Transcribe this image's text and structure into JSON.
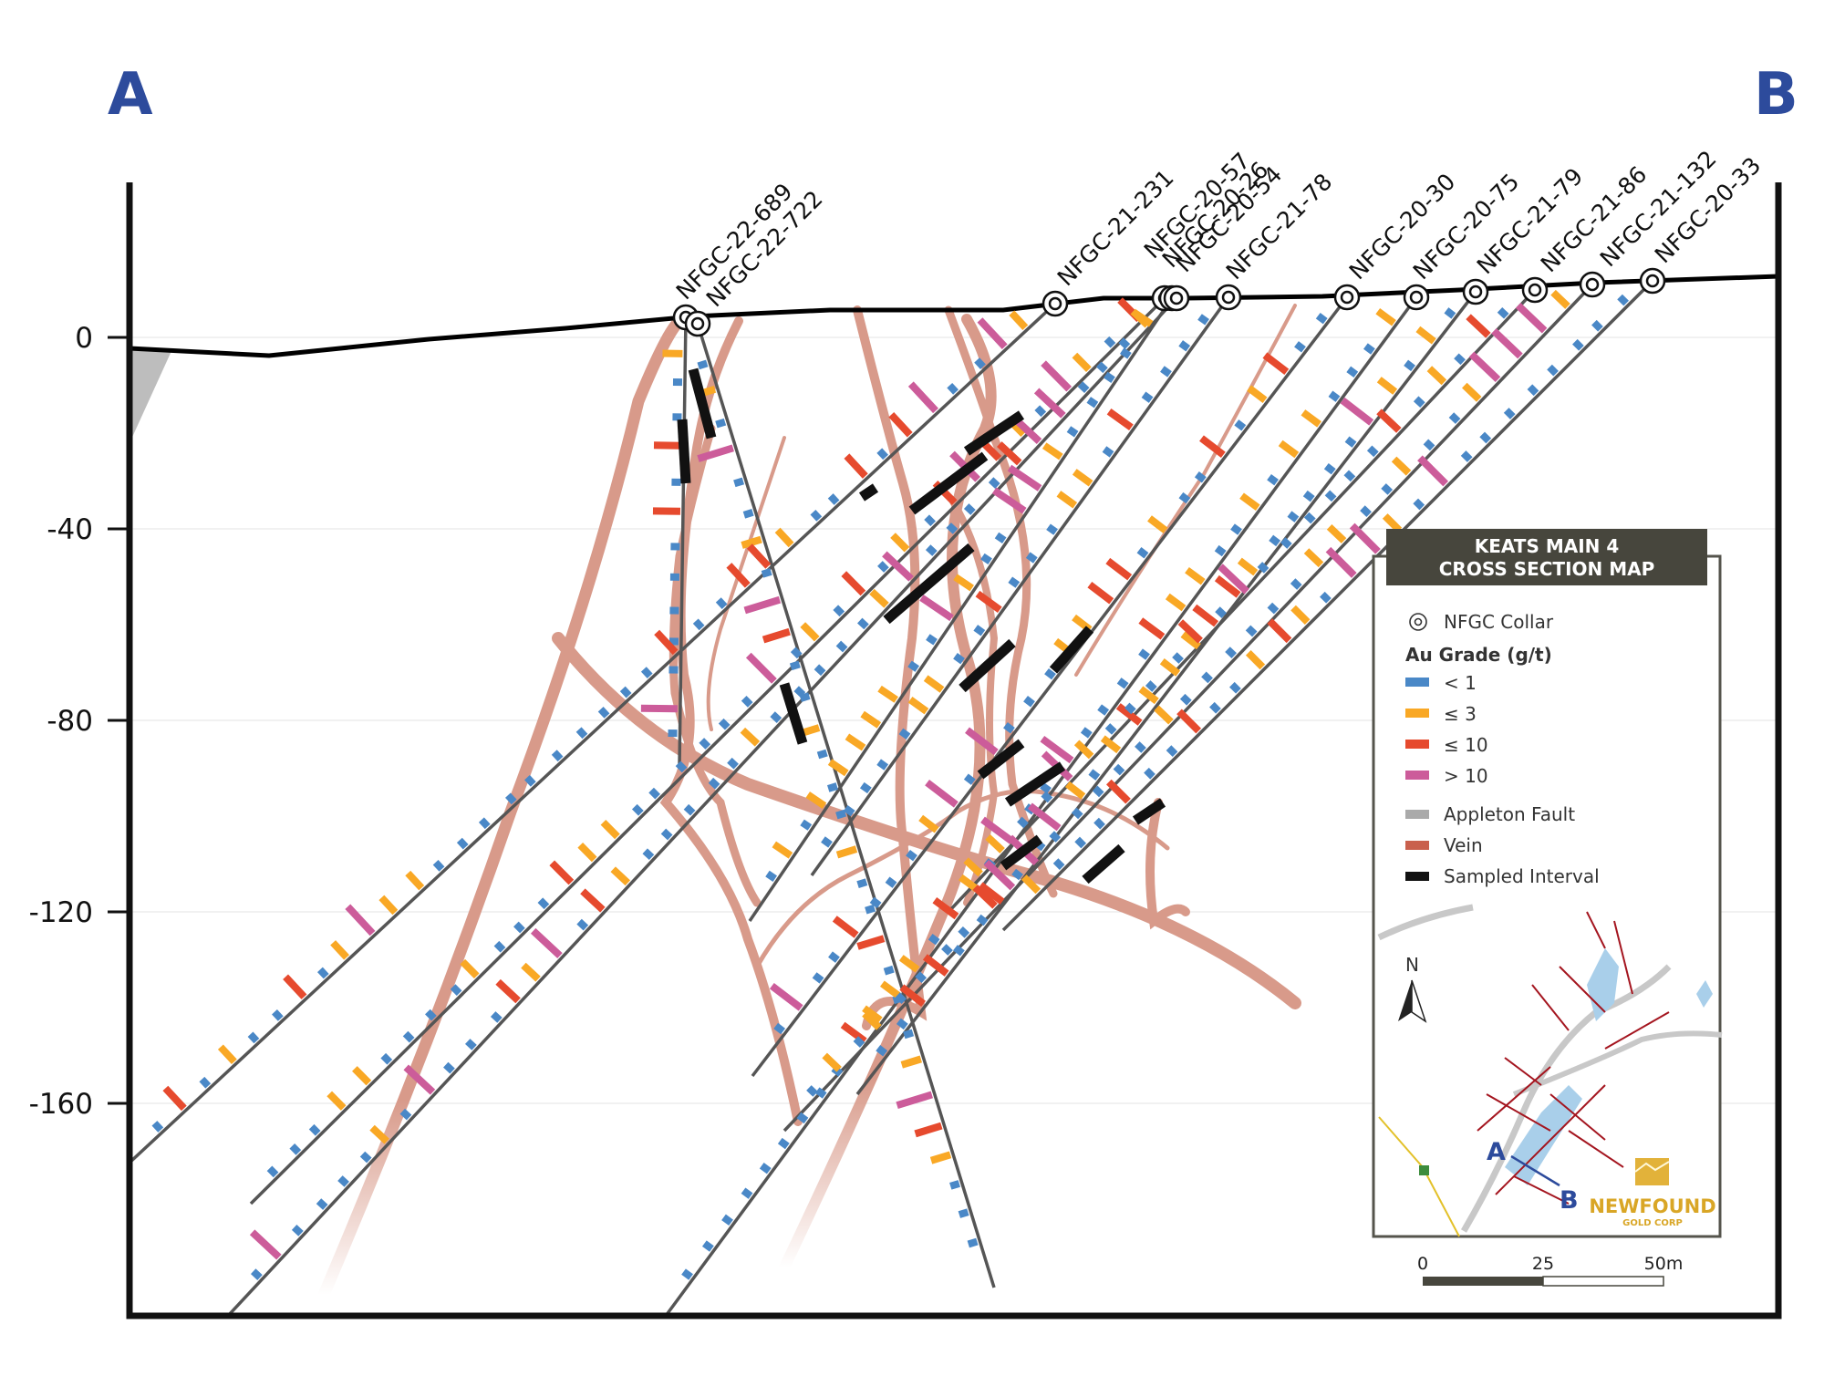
{
  "section": {
    "start_label": "A",
    "end_label": "B"
  },
  "axis": {
    "ticks": [
      {
        "value": 0,
        "label": "0"
      },
      {
        "value": -40,
        "label": "-40"
      },
      {
        "value": -80,
        "label": "-80"
      },
      {
        "value": -120,
        "label": "-120"
      },
      {
        "value": -160,
        "label": "-160"
      }
    ]
  },
  "drill_holes": [
    {
      "id": "NFGC-22-689"
    },
    {
      "id": "NFGC-22-722"
    },
    {
      "id": "NFGC-21-231"
    },
    {
      "id": "NFGC-20-57"
    },
    {
      "id": "NFGC-20-26"
    },
    {
      "id": "NFGC-20-54"
    },
    {
      "id": "NFGC-21-78"
    },
    {
      "id": "NFGC-20-30"
    },
    {
      "id": "NFGC-20-75"
    },
    {
      "id": "NFGC-21-79"
    },
    {
      "id": "NFGC-21-86"
    },
    {
      "id": "NFGC-21-132"
    },
    {
      "id": "NFGC-20-33"
    }
  ],
  "legend": {
    "title_line1": "KEATS MAIN 4",
    "title_line2": "CROSS SECTION MAP",
    "collar_label": "NFGC Collar",
    "grade_heading": "Au Grade (g/t)",
    "grades": [
      {
        "label": "< 1",
        "color": "#4a88c7"
      },
      {
        "label": "≤ 3",
        "color": "#f9a825"
      },
      {
        "label": "≤ 10",
        "color": "#e64a2e"
      },
      {
        "label": "> 10",
        "color": "#cc5c9a"
      }
    ],
    "features": [
      {
        "label": "Appleton Fault",
        "color": "#aaaaaa"
      },
      {
        "label": "Vein",
        "color": "#c9604d"
      },
      {
        "label": "Sampled Interval",
        "color": "#111111"
      }
    ]
  },
  "inset": {
    "north": "N",
    "point_a": "A",
    "point_b": "B",
    "logo_main": "NEWFOUND",
    "logo_sub": "GOLD CORP"
  },
  "scale_bar": {
    "labels": [
      "0",
      "25",
      "50m"
    ]
  },
  "colors": {
    "header": "#47463d",
    "frame": "#111111",
    "vein": "#d89a8a",
    "drill_trace": "#555555"
  }
}
